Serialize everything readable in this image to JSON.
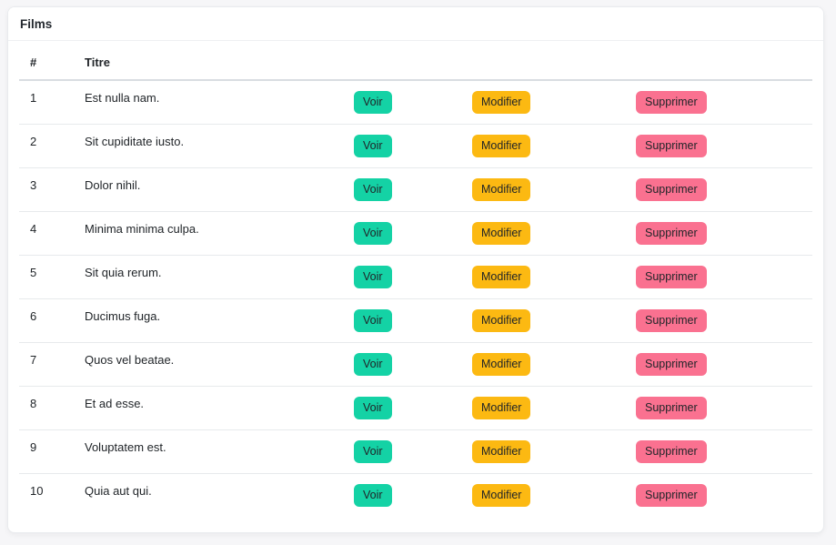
{
  "card": {
    "title": "Films"
  },
  "table": {
    "headers": {
      "number": "#",
      "title": "Titre"
    },
    "actions": {
      "view": "Voir",
      "edit": "Modifier",
      "delete": "Supprimer"
    },
    "rows": [
      {
        "number": "1",
        "title": "Est nulla nam."
      },
      {
        "number": "2",
        "title": "Sit cupiditate iusto."
      },
      {
        "number": "3",
        "title": "Dolor nihil."
      },
      {
        "number": "4",
        "title": "Minima minima culpa."
      },
      {
        "number": "5",
        "title": "Sit quia rerum."
      },
      {
        "number": "6",
        "title": "Ducimus fuga."
      },
      {
        "number": "7",
        "title": "Quos vel beatae."
      },
      {
        "number": "8",
        "title": "Et ad esse."
      },
      {
        "number": "9",
        "title": "Voluptatem est."
      },
      {
        "number": "10",
        "title": "Quia aut qui."
      }
    ]
  },
  "colors": {
    "view_button": "#14d2a5",
    "edit_button": "#fcb912",
    "delete_button": "#fa7190",
    "page_background": "#f6f6f8",
    "card_background": "#ffffff",
    "text": "#212529"
  }
}
